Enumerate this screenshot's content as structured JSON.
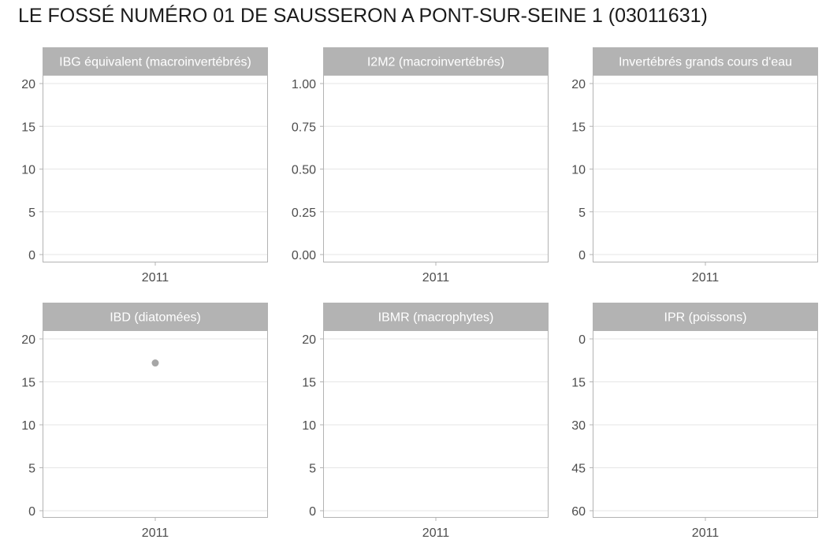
{
  "title": "LE FOSSÉ NUMÉRO 01 DE SAUSSERON A PONT-SUR-SEINE 1 (03011631)",
  "colors": {
    "strip": "#b3b3b3",
    "panel_border": "#b3b3b3",
    "grid": "#e6e6e6",
    "point": "#a6a6a6",
    "tick_text": "#4d4d4d"
  },
  "chart_data": [
    {
      "type": "scatter",
      "title": "IBG équivalent (macroinvertébrés)",
      "categories": [
        "2011"
      ],
      "ylim": [
        0,
        20
      ],
      "yticks": [
        0,
        5,
        10,
        15,
        20
      ],
      "ytick_labels": [
        "0",
        "5",
        "10",
        "15",
        "20"
      ],
      "reverse_y": false,
      "points": []
    },
    {
      "type": "scatter",
      "title": "I2M2 (macroinvertébrés)",
      "categories": [
        "2011"
      ],
      "ylim": [
        0,
        1
      ],
      "yticks": [
        0,
        0.25,
        0.5,
        0.75,
        1
      ],
      "ytick_labels": [
        "0.00",
        "0.25",
        "0.50",
        "0.75",
        "1.00"
      ],
      "reverse_y": false,
      "points": []
    },
    {
      "type": "scatter",
      "title": "Invertébrés grands cours d'eau",
      "categories": [
        "2011"
      ],
      "ylim": [
        0,
        20
      ],
      "yticks": [
        0,
        5,
        10,
        15,
        20
      ],
      "ytick_labels": [
        "0",
        "5",
        "10",
        "15",
        "20"
      ],
      "reverse_y": false,
      "points": []
    },
    {
      "type": "scatter",
      "title": "IBD (diatomées)",
      "categories": [
        "2011"
      ],
      "ylim": [
        0,
        20
      ],
      "yticks": [
        0,
        5,
        10,
        15,
        20
      ],
      "ytick_labels": [
        "0",
        "5",
        "10",
        "15",
        "20"
      ],
      "reverse_y": false,
      "points": [
        {
          "x": "2011",
          "y": 17.2
        }
      ]
    },
    {
      "type": "scatter",
      "title": "IBMR (macrophytes)",
      "categories": [
        "2011"
      ],
      "ylim": [
        0,
        20
      ],
      "yticks": [
        0,
        5,
        10,
        15,
        20
      ],
      "ytick_labels": [
        "0",
        "5",
        "10",
        "15",
        "20"
      ],
      "reverse_y": false,
      "points": []
    },
    {
      "type": "scatter",
      "title": "IPR (poissons)",
      "categories": [
        "2011"
      ],
      "ylim": [
        0,
        60
      ],
      "yticks": [
        0,
        15,
        30,
        45,
        60
      ],
      "ytick_labels": [
        "0",
        "15",
        "30",
        "45",
        "60"
      ],
      "reverse_y": true,
      "points": []
    }
  ]
}
